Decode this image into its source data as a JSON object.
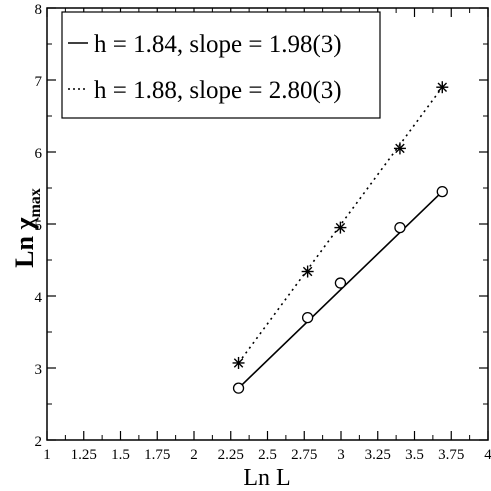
{
  "chart_data": {
    "type": "scatter",
    "xlabel": "Ln L",
    "ylabel_main": "Ln χ",
    "ylabel_sub": "max",
    "xlim": [
      1,
      4
    ],
    "ylim": [
      2,
      8
    ],
    "xticks": [
      "1",
      "1.25",
      "1.5",
      "1.75",
      "2",
      "2.25",
      "2.5",
      "2.75",
      "3",
      "3.25",
      "3.5",
      "3.75",
      "4"
    ],
    "yticks": [
      "2",
      "3",
      "4",
      "5",
      "6",
      "7",
      "8"
    ],
    "legend_position": "top-left",
    "series": [
      {
        "name": "h = 1.84, slope = 1.98(3)",
        "line_style": "solid",
        "marker": "circle",
        "x": [
          2.303,
          2.773,
          2.996,
          3.401,
          3.689
        ],
        "y": [
          2.72,
          3.7,
          4.18,
          4.95,
          5.45
        ],
        "fit": [
          [
            2.303,
            2.72
          ],
          [
            3.689,
            5.45
          ]
        ]
      },
      {
        "name": "h = 1.88, slope = 2.80(3)",
        "line_style": "dotted",
        "marker": "star",
        "x": [
          2.303,
          2.773,
          2.996,
          3.401,
          3.689
        ],
        "y": [
          3.07,
          4.34,
          4.95,
          6.05,
          6.9
        ],
        "fit": [
          [
            2.303,
            3.07
          ],
          [
            3.689,
            6.9
          ]
        ]
      }
    ]
  }
}
